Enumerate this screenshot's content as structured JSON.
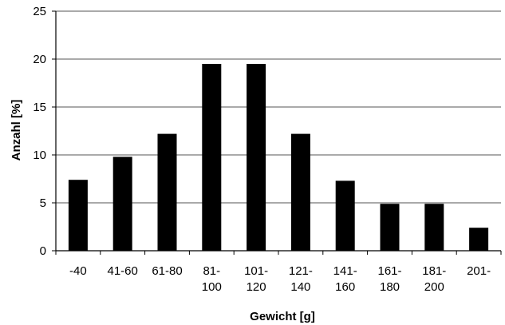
{
  "chart_data": {
    "type": "bar",
    "title": "",
    "xlabel": "Gewicht [g]",
    "ylabel": "Anzahl [%]",
    "ylim": [
      0,
      25
    ],
    "yticks": [
      "0",
      "5",
      "10",
      "15",
      "20",
      "25"
    ],
    "grid": "horizontal",
    "legend": "none",
    "bar_color": "#000000",
    "categories": [
      [
        "-40"
      ],
      [
        "41-60"
      ],
      [
        "61-80"
      ],
      [
        "81-",
        "100"
      ],
      [
        "101-",
        "120"
      ],
      [
        "121-",
        "140"
      ],
      [
        "141-",
        "160"
      ],
      [
        "161-",
        "180"
      ],
      [
        "181-",
        "200"
      ],
      [
        "201-"
      ]
    ],
    "values": [
      7.4,
      9.8,
      12.2,
      19.5,
      19.5,
      12.2,
      7.3,
      4.9,
      4.9,
      2.4
    ]
  }
}
